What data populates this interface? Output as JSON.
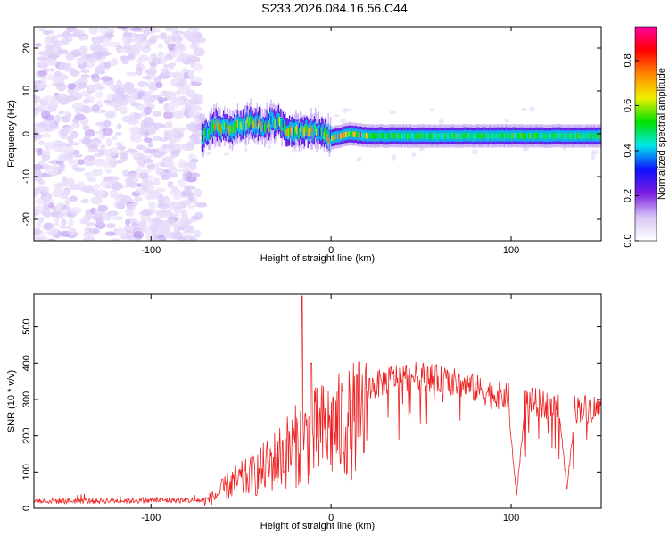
{
  "page_title": "S233.2026.084.16.56.C44",
  "colors": {
    "snr_line": "#ee2222",
    "colormap": [
      "#ffffff",
      "#d8c6f6",
      "#7a1ce0",
      "#1010ff",
      "#00e8e8",
      "#00e000",
      "#f0f000",
      "#ff8800",
      "#ff0000",
      "#ff00a0"
    ]
  },
  "chart_data": [
    {
      "type": "heatmap",
      "title": "S233.2026.084.16.56.C44",
      "xlabel": "Height of straight line (km)",
      "ylabel": "Frequency (Hz)",
      "xlim": [
        -165,
        150
      ],
      "ylim": [
        -25,
        25
      ],
      "x_ticks": [
        -100,
        0,
        100
      ],
      "x_tick_labels": [
        "-100",
        "0",
        "100"
      ],
      "y_ticks": [
        -20,
        -10,
        0,
        10,
        20
      ],
      "y_tick_labels": [
        "-20",
        "-10",
        "0",
        "10",
        "20"
      ],
      "colorbar": {
        "label": "Normalized spectral amplitude",
        "range": [
          0,
          0.95
        ],
        "ticks": [
          0,
          0.2,
          0.4,
          0.6,
          0.8
        ],
        "tick_labels": [
          "0.0",
          "0.2",
          "0.4",
          "0.6",
          "0.8"
        ]
      },
      "features": {
        "noise_region_x": [
          -165,
          -72
        ],
        "noise_amplitude": [
          0.05,
          0.12
        ],
        "onset_x": -72,
        "line_frequency_hz": 0,
        "ridge_amplitude_peak": 0.8,
        "wander_points": [
          {
            "x": -72,
            "f": -1
          },
          {
            "x": -65,
            "f": 2
          },
          {
            "x": -55,
            "f": 1
          },
          {
            "x": -45,
            "f": 3
          },
          {
            "x": -38,
            "f": 2
          },
          {
            "x": -30,
            "f": 3
          },
          {
            "x": -25,
            "f": 0.5
          },
          {
            "x": -18,
            "f": 0.5
          },
          {
            "x": -10,
            "f": 1
          },
          {
            "x": 0,
            "f": -1
          },
          {
            "x": 10,
            "f": 0
          },
          {
            "x": 20,
            "f": -0.5
          },
          {
            "x": 150,
            "f": -0.5
          }
        ]
      }
    },
    {
      "type": "line",
      "title": "",
      "xlabel": "Height of straight line (km)",
      "ylabel": "SNR (10 * v/v)",
      "xlim": [
        -165,
        150
      ],
      "ylim": [
        0,
        590
      ],
      "x_ticks": [
        -100,
        0,
        100
      ],
      "x_tick_labels": [
        "-100",
        "0",
        "100"
      ],
      "y_ticks": [
        0,
        100,
        200,
        300,
        400,
        500
      ],
      "y_tick_labels": [
        "0",
        "100",
        "200",
        "300",
        "400",
        "500"
      ],
      "series": [
        {
          "name": "SNR",
          "envelope": [
            {
              "x": -165,
              "y": 20
            },
            {
              "x": -72,
              "y": 22
            },
            {
              "x": -65,
              "y": 40
            },
            {
              "x": -55,
              "y": 90
            },
            {
              "x": -45,
              "y": 110
            },
            {
              "x": -35,
              "y": 150
            },
            {
              "x": -25,
              "y": 200
            },
            {
              "x": -15,
              "y": 240
            },
            {
              "x": -5,
              "y": 270
            },
            {
              "x": 5,
              "y": 290
            },
            {
              "x": 15,
              "y": 320
            },
            {
              "x": 25,
              "y": 340
            },
            {
              "x": 35,
              "y": 360
            },
            {
              "x": 50,
              "y": 365
            },
            {
              "x": 70,
              "y": 345
            },
            {
              "x": 90,
              "y": 315
            },
            {
              "x": 110,
              "y": 295
            },
            {
              "x": 130,
              "y": 275
            },
            {
              "x": 150,
              "y": 275
            }
          ],
          "spikes": [
            {
              "x": -16,
              "y": 585
            },
            {
              "x": -11,
              "y": 400
            }
          ],
          "dips": [
            {
              "x": 103,
              "y": 30
            },
            {
              "x": 131,
              "y": 40
            }
          ]
        }
      ]
    }
  ]
}
